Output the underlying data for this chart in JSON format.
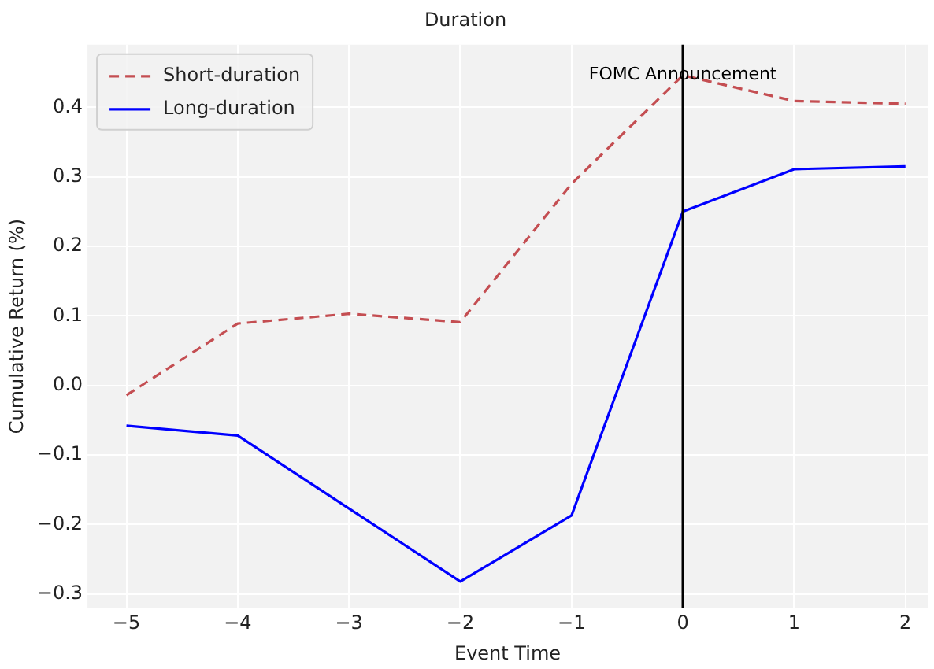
{
  "chart_data": {
    "type": "line",
    "title": "Duration",
    "xlabel": "Event Time",
    "ylabel": "Cumulative Return (%)",
    "x": [
      -5,
      -4,
      -3,
      -2,
      -1,
      0,
      1,
      2
    ],
    "series": [
      {
        "name": "Short-duration",
        "color": "#c44e52",
        "line_style": "dashed",
        "values": [
          -0.014,
          0.089,
          0.103,
          0.091,
          0.29,
          0.446,
          0.409,
          0.405
        ]
      },
      {
        "name": "Long-duration",
        "color": "#0000ff",
        "line_style": "solid",
        "values": [
          -0.058,
          -0.072,
          -0.177,
          -0.282,
          -0.187,
          0.25,
          0.311,
          0.315
        ]
      }
    ],
    "xlim": [
      -5.35,
      2.2
    ],
    "xticks": [
      -5,
      -4,
      -3,
      -2,
      -1,
      0,
      1,
      2
    ],
    "ylim": [
      -0.32,
      0.49
    ],
    "yticks": [
      -0.3,
      -0.2,
      -0.1,
      {
        "value": 0,
        "label": "0.0"
      },
      0.1,
      0.2,
      0.3,
      0.4
    ],
    "ref_lines": [
      {
        "axis": "x",
        "value": 0,
        "label": "FOMC Announcement",
        "color": "#000000"
      }
    ],
    "grid": true,
    "legend": "top left",
    "marker": "none"
  }
}
